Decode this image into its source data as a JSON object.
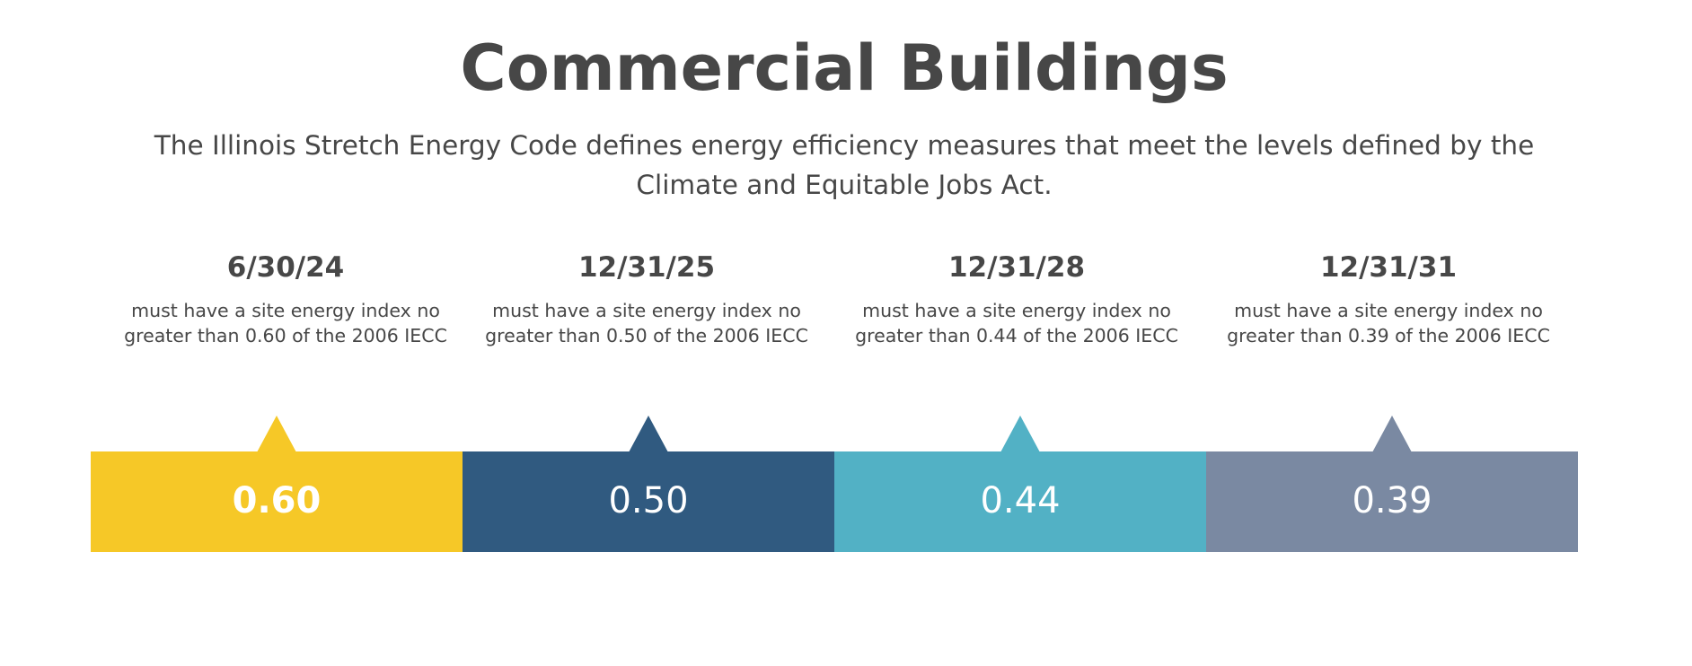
{
  "title": "Commercial Buildings",
  "subtitle": "The Illinois Stretch Energy Code defines energy efficiency measures that meet the levels defined by the Climate and Equitable Jobs Act.",
  "milestones": [
    {
      "date": "6/30/24",
      "description": "must have a site energy index no greater than 0.60 of the 2006 IECC",
      "value_label": "0.60",
      "value": 0.6,
      "color": "#F6C827"
    },
    {
      "date": "12/31/25",
      "description": "must have a site energy index no greater than 0.50 of the 2006 IECC",
      "value_label": "0.50",
      "value": 0.5,
      "color": "#305A80"
    },
    {
      "date": "12/31/28",
      "description": "must have a site energy index no greater than 0.44 of the 2006 IECC",
      "value_label": "0.44",
      "value": 0.44,
      "color": "#52B1C5"
    },
    {
      "date": "12/31/31",
      "description": "must have a site energy index no greater than 0.39 of the 2006 IECC",
      "value_label": "0.39",
      "value": 0.39,
      "color": "#7A89A2"
    }
  ]
}
